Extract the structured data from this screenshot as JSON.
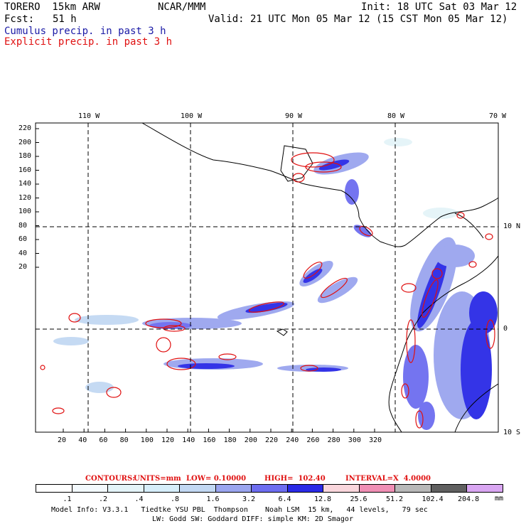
{
  "header": {
    "model": "TORERO  15km ARW",
    "org": "NCAR/MMM",
    "init": "Init: 18 UTC Sat 03 Mar 12",
    "fcst_label": "Fcst:",
    "fcst_value": "51 h",
    "valid": "Valid: 21 UTC Mon 05 Mar 12 (15 CST Mon 05 Mar 12)",
    "field1": "Cumulus precip. in past 3 h",
    "field2": "Explicit precip. in past 3 h"
  },
  "colors": {
    "cumulus": "#1a1aa6",
    "explicit": "#e01010",
    "land_line": "#000000"
  },
  "map": {
    "lon_labels": [
      "110 W",
      "100 W",
      "90 W",
      "80 W",
      "70 W"
    ],
    "lat_labels": [
      "10 N",
      "0",
      "10 S"
    ],
    "x_ticks": [
      "20",
      "40",
      "60",
      "80",
      "100",
      "120",
      "140",
      "160",
      "180",
      "200",
      "220",
      "240",
      "260",
      "280",
      "300",
      "320"
    ],
    "y_ticks": [
      "220",
      "200",
      "180",
      "160",
      "140",
      "120",
      "100",
      "80",
      "60",
      "40",
      "20"
    ]
  },
  "contours_line": {
    "prefix": "CONTOURS:",
    "units": "UNITS=mm",
    "low": "LOW= 0.10000",
    "high": "HIGH=  102.40",
    "interval": "INTERVAL=X  4.0000"
  },
  "legend": {
    "unit": "mm",
    "bins": [
      {
        "color": "#ffffff",
        "label": ".1"
      },
      {
        "color": "#f3f9fd",
        "label": ".2"
      },
      {
        "color": "#e4f4f8",
        "label": ".4"
      },
      {
        "color": "#d6eefa",
        "label": ".8"
      },
      {
        "color": "#c2d8f3",
        "label": "1.6"
      },
      {
        "color": "#9aa5ef",
        "label": "3.2"
      },
      {
        "color": "#6d6df0",
        "label": "6.4"
      },
      {
        "color": "#2a2ae6",
        "label": "12.8"
      },
      {
        "color": "#f9d6dc",
        "label": "25.6"
      },
      {
        "color": "#f08fb5",
        "label": "51.2"
      },
      {
        "color": "#b8b8b8",
        "label": "102.4"
      },
      {
        "color": "#606060",
        "label": "204.8"
      },
      {
        "color": "#d9a6f2",
        "label": ""
      }
    ]
  },
  "footer": {
    "line1": "Model Info: V3.3.1   Tiedtke YSU PBL  Thompson    Noah LSM  15 km,   44 levels,   79 sec",
    "line2": "LW: Godd SW: Goddard DIFF: simple KM: 2D Smagor"
  }
}
